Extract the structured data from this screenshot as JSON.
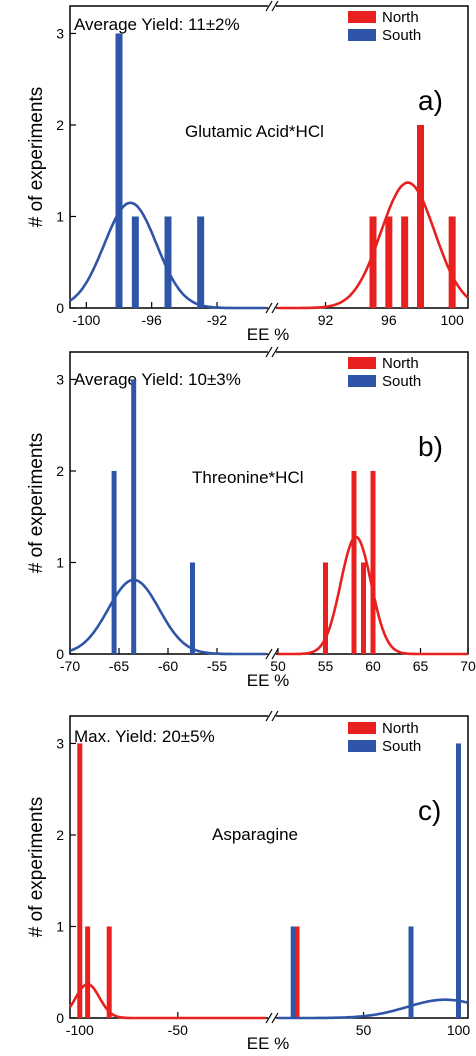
{
  "colors": {
    "north": "#e8201f",
    "south": "#2e55a8",
    "axis": "#000000",
    "frame": "#000000"
  },
  "chart_data": [
    {
      "type": "bar",
      "panel_label": "a)",
      "compound": "Glutamic Acid*HCl",
      "yield_text": "Average Yield: 11±2%",
      "xlabel": "EE %",
      "ylabel": "# of experiments",
      "ylim": [
        0,
        3.3
      ],
      "y_ticks": [
        0,
        1,
        2,
        3
      ],
      "axis_break": true,
      "left_segment": {
        "xlim": [
          -101,
          -89
        ],
        "ticks": [
          -100,
          -96,
          -92
        ]
      },
      "right_segment": {
        "xlim": [
          89,
          101
        ],
        "ticks": [
          92,
          96,
          100
        ]
      },
      "legend": {
        "placement": "top-right",
        "entries": [
          "North",
          "South"
        ]
      },
      "series": [
        {
          "name": "South",
          "color": "south",
          "segment": "left",
          "bars": [
            {
              "x": -98,
              "y": 3
            },
            {
              "x": -97,
              "y": 1
            },
            {
              "x": -95,
              "y": 1
            },
            {
              "x": -93,
              "y": 1
            }
          ],
          "fit": {
            "mean": -97.3,
            "sd": 1.6,
            "amp": 1.15
          }
        },
        {
          "name": "North",
          "color": "north",
          "segment": "right",
          "bars": [
            {
              "x": 95,
              "y": 1
            },
            {
              "x": 96,
              "y": 1
            },
            {
              "x": 97,
              "y": 1
            },
            {
              "x": 98,
              "y": 2
            },
            {
              "x": 100,
              "y": 1
            }
          ],
          "fit": {
            "mean": 97.2,
            "sd": 1.7,
            "amp": 1.37
          }
        }
      ]
    },
    {
      "type": "bar",
      "panel_label": "b)",
      "compound": "Threonine*HCl",
      "yield_text": "Average Yield: 10±3%",
      "xlabel": "EE %",
      "ylabel": "# of experiments",
      "ylim": [
        0,
        3.3
      ],
      "y_ticks": [
        0,
        1,
        2,
        3
      ],
      "axis_break": true,
      "left_segment": {
        "xlim": [
          -70,
          -50
        ],
        "ticks": [
          -70,
          -65,
          -60,
          -55
        ]
      },
      "right_segment": {
        "xlim": [
          50,
          70
        ],
        "ticks": [
          50,
          55,
          60,
          65,
          70
        ]
      },
      "legend": {
        "placement": "top-right",
        "entries": [
          "North",
          "South"
        ]
      },
      "series": [
        {
          "name": "South",
          "color": "south",
          "segment": "left",
          "bars": [
            {
              "x": -65.5,
              "y": 2
            },
            {
              "x": -63.5,
              "y": 3
            },
            {
              "x": -57.5,
              "y": 1
            }
          ],
          "fit": {
            "mean": -63.5,
            "sd": 2.6,
            "amp": 0.81
          }
        },
        {
          "name": "North",
          "color": "north",
          "segment": "right",
          "bars": [
            {
              "x": 55,
              "y": 1
            },
            {
              "x": 58,
              "y": 2
            },
            {
              "x": 59,
              "y": 1
            },
            {
              "x": 60,
              "y": 2
            }
          ],
          "fit": {
            "mean": 58.2,
            "sd": 1.6,
            "amp": 1.28
          }
        }
      ]
    },
    {
      "type": "bar",
      "panel_label": "c)",
      "compound": "Asparagine",
      "yield_text": "Max. Yield: 20±5%",
      "xlabel": "EE %",
      "ylabel": "# of experiments",
      "ylim": [
        0,
        3.3
      ],
      "y_ticks": [
        0,
        1,
        2,
        3
      ],
      "axis_break": true,
      "left_segment": {
        "xlim": [
          -105,
          -5
        ],
        "ticks": [
          -100,
          -50
        ]
      },
      "right_segment": {
        "xlim": [
          5,
          105
        ],
        "ticks": [
          50,
          100
        ]
      },
      "legend": {
        "placement": "top-right",
        "entries": [
          "North",
          "South"
        ]
      },
      "series": [
        {
          "name": "North",
          "color": "north",
          "segment": "both",
          "bars": [
            {
              "x": -100,
              "y": 3
            },
            {
              "x": -96,
              "y": 1
            },
            {
              "x": -85,
              "y": 1
            },
            {
              "x": 15,
              "y": 1
            },
            {
              "x": 100,
              "y": 1
            }
          ],
          "fit": {
            "mean": -96,
            "sd": 6,
            "amp": 0.37
          }
        },
        {
          "name": "South",
          "color": "south",
          "segment": "right",
          "bars": [
            {
              "x": 13,
              "y": 1
            },
            {
              "x": 75,
              "y": 1
            },
            {
              "x": 100,
              "y": 3
            }
          ],
          "fit": {
            "mean": 93,
            "sd": 20,
            "amp": 0.2
          }
        }
      ]
    }
  ]
}
